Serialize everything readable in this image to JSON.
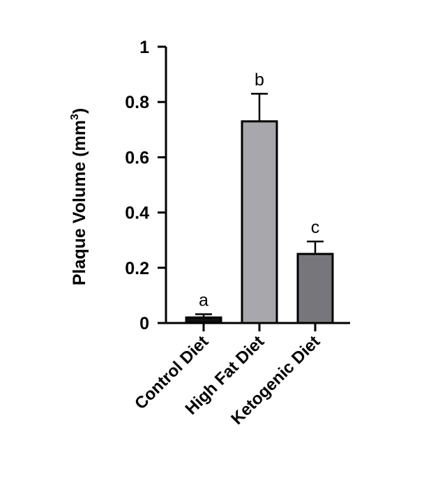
{
  "chart_data": {
    "type": "bar",
    "title": "",
    "xlabel": "",
    "ylabel": "Plaque Volume  (mm",
    "ylabel_superscript": "3",
    "ylabel_suffix": ")",
    "ylim": [
      0,
      1
    ],
    "yticks": [
      0,
      0.2,
      0.4,
      0.6,
      0.8,
      1
    ],
    "ytick_labels": [
      "0",
      "0.2",
      "0.4",
      "0.6",
      "0.8",
      "1"
    ],
    "categories": [
      "Control Diet",
      "High Fat Diet",
      "Ketogenic Diet"
    ],
    "values": [
      0.02,
      0.73,
      0.25
    ],
    "errors": [
      0.012,
      0.1,
      0.045
    ],
    "significance_labels": [
      "a",
      "b",
      "c"
    ],
    "colors": [
      "#111111",
      "#a8a8ac",
      "#77777b"
    ],
    "grid": false
  }
}
